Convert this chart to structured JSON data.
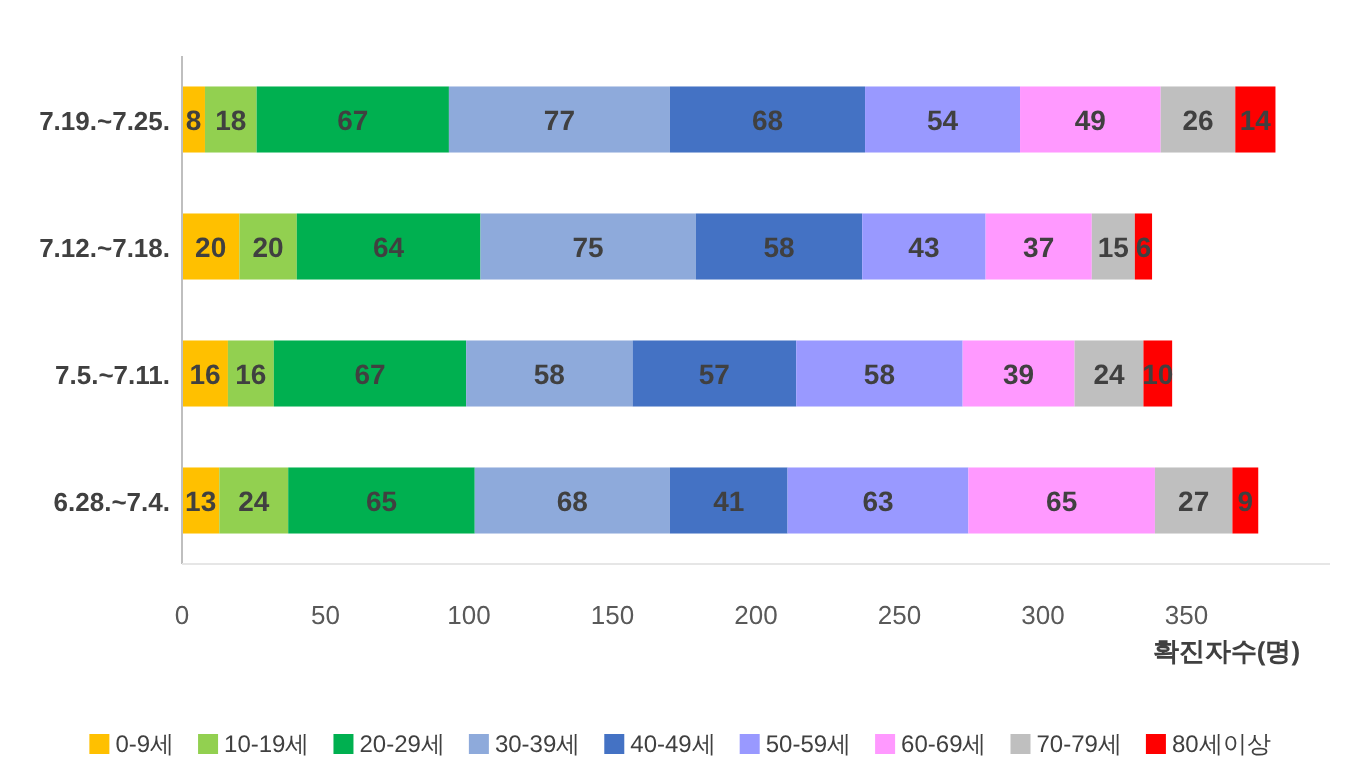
{
  "chart_data": {
    "type": "bar",
    "orientation": "horizontal",
    "stacked": true,
    "data_labels": true,
    "legend": "bottom",
    "grid": false,
    "xlabel": "확진자수(명)",
    "xlim": [
      0,
      400
    ],
    "xticks": [
      0,
      50,
      100,
      150,
      200,
      250,
      300,
      350
    ],
    "categories": [
      "7.19.~7.25.",
      "7.12.~7.18.",
      "7.5.~7.11.",
      "6.28.~7.4."
    ],
    "series": [
      {
        "name": "0-9세",
        "color": "#ffc000",
        "values": [
          8,
          20,
          16,
          13
        ]
      },
      {
        "name": "10-19세",
        "color": "#92d050",
        "values": [
          18,
          20,
          16,
          24
        ]
      },
      {
        "name": "20-29세",
        "color": "#00b050",
        "values": [
          67,
          64,
          67,
          65
        ]
      },
      {
        "name": "30-39세",
        "color": "#8eaadb",
        "values": [
          77,
          75,
          58,
          68
        ]
      },
      {
        "name": "40-49세",
        "color": "#4472c4",
        "values": [
          68,
          58,
          57,
          41
        ]
      },
      {
        "name": "50-59세",
        "color": "#9999ff",
        "values": [
          54,
          43,
          58,
          63
        ]
      },
      {
        "name": "60-69세",
        "color": "#ff99ff",
        "values": [
          49,
          37,
          39,
          65
        ]
      },
      {
        "name": "70-79세",
        "color": "#bfbfbf",
        "values": [
          26,
          15,
          24,
          27
        ]
      },
      {
        "name": "80세이상",
        "color": "#ff0000",
        "values": [
          14,
          6,
          10,
          9
        ]
      }
    ]
  }
}
